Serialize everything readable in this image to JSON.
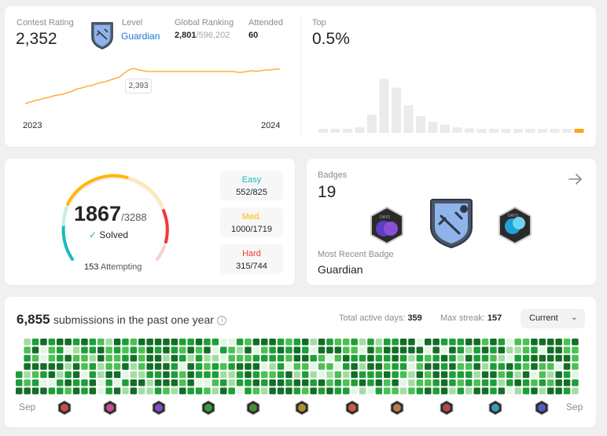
{
  "rating": {
    "label": "Contest Rating",
    "value": "2,352",
    "level_label": "Level",
    "level_value": "Guardian",
    "ranking_label": "Global Ranking",
    "ranking_value": "2,801",
    "ranking_total": "/596,202",
    "attended_label": "Attended",
    "attended_value": "60",
    "tooltip_value": "2,393",
    "year_start": "2023",
    "year_end": "2024",
    "top_label": "Top",
    "top_value": "0.5%",
    "histogram_levels": [
      0.05,
      0.05,
      0.06,
      0.1,
      0.33,
      0.98,
      0.82,
      0.5,
      0.3,
      0.2,
      0.15,
      0.1,
      0.08,
      0.07,
      0.06,
      0.06,
      0.05,
      0.05,
      0.05,
      0.05,
      0.05,
      0.05
    ],
    "histogram_highlight_index": 21
  },
  "solved": {
    "total": "1867",
    "out_of": "/3288",
    "solved_label": "Solved",
    "attempting_count": "153",
    "attempting_label": "Attempting",
    "easy_label": "Easy",
    "easy_value": "552/825",
    "med_label": "Med.",
    "med_value": "1000/1719",
    "hard_label": "Hard",
    "hard_value": "315/744"
  },
  "badges": {
    "label": "Badges",
    "count": "19",
    "recent_label": "Most Recent Badge",
    "recent_value": "Guardian"
  },
  "heatmap": {
    "count": "6,855",
    "label": "submissions in the past one year",
    "active_days_label": "Total active days:",
    "active_days_value": "359",
    "streak_label": "Max streak:",
    "streak_value": "157",
    "period_select": "Current",
    "month_start": "Sep",
    "month_end": "Sep"
  },
  "colors": {
    "accent_blue": "#1a73d9",
    "easy": "#1cbaba",
    "medium": "#ffb800",
    "hard": "#f63737",
    "rating_line": "#ffa116",
    "heat_levels": [
      "#e4f5e4",
      "#a2dda2",
      "#4cc052",
      "#1e9e38",
      "#136d27"
    ]
  }
}
